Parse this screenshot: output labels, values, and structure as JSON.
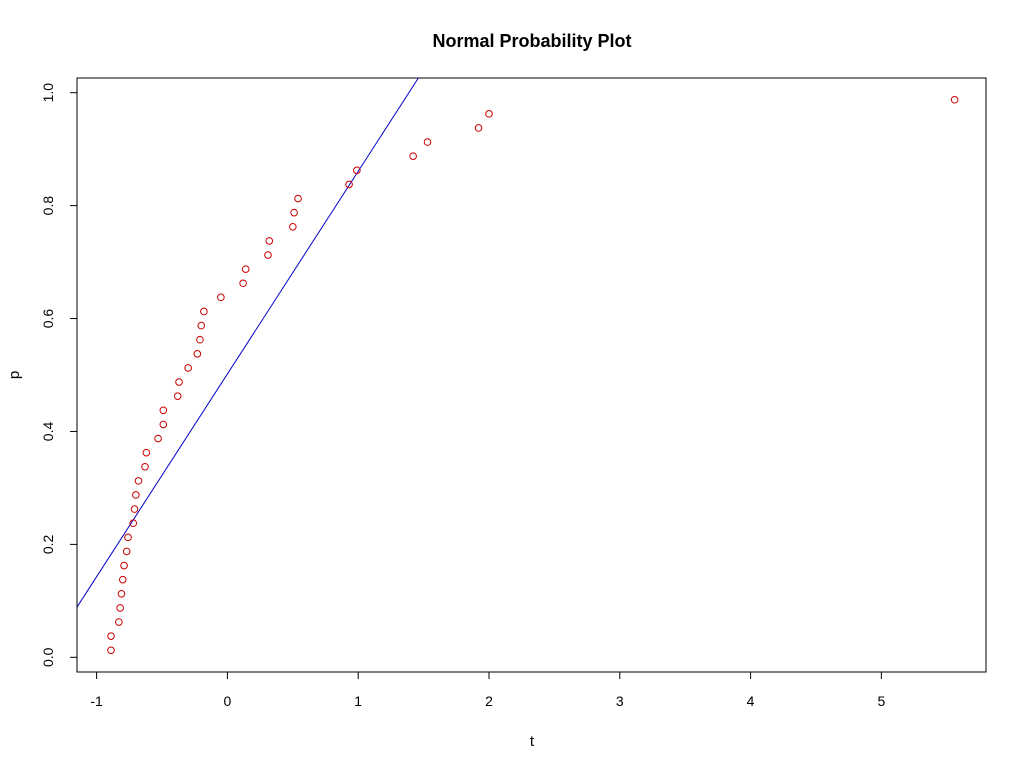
{
  "chart_data": {
    "type": "scatter",
    "title": "Normal Probability Plot",
    "xlabel": "t",
    "ylabel": "p",
    "xlim": [
      -1.15,
      5.8
    ],
    "ylim": [
      -0.026,
      1.026
    ],
    "x_ticks": [
      {
        "value": -1,
        "label": "-1"
      },
      {
        "value": 0,
        "label": "0"
      },
      {
        "value": 1,
        "label": "1"
      },
      {
        "value": 2,
        "label": "2"
      },
      {
        "value": 3,
        "label": "3"
      },
      {
        "value": 4,
        "label": "4"
      },
      {
        "value": 5,
        "label": "5"
      }
    ],
    "y_ticks": [
      {
        "value": 0.0,
        "label": "0.0"
      },
      {
        "value": 0.2,
        "label": "0.2"
      },
      {
        "value": 0.4,
        "label": "0.4"
      },
      {
        "value": 0.6,
        "label": "0.6"
      },
      {
        "value": 0.8,
        "label": "0.8"
      },
      {
        "value": 1.0,
        "label": "1.0"
      }
    ],
    "grid": false,
    "legend": "none",
    "series": [
      {
        "marker": "open-circle",
        "color": "#cc0000",
        "points": [
          {
            "x": -0.89,
            "y": 0.0125
          },
          {
            "x": -0.89,
            "y": 0.0375
          },
          {
            "x": -0.83,
            "y": 0.0625
          },
          {
            "x": -0.82,
            "y": 0.0875
          },
          {
            "x": -0.81,
            "y": 0.1125
          },
          {
            "x": -0.8,
            "y": 0.1375
          },
          {
            "x": -0.79,
            "y": 0.1625
          },
          {
            "x": -0.77,
            "y": 0.1875
          },
          {
            "x": -0.76,
            "y": 0.2125
          },
          {
            "x": -0.72,
            "y": 0.2375
          },
          {
            "x": -0.71,
            "y": 0.2625
          },
          {
            "x": -0.7,
            "y": 0.2875
          },
          {
            "x": -0.68,
            "y": 0.3125
          },
          {
            "x": -0.63,
            "y": 0.3375
          },
          {
            "x": -0.62,
            "y": 0.3625
          },
          {
            "x": -0.53,
            "y": 0.3875
          },
          {
            "x": -0.49,
            "y": 0.4125
          },
          {
            "x": -0.49,
            "y": 0.4375
          },
          {
            "x": -0.38,
            "y": 0.4625
          },
          {
            "x": -0.37,
            "y": 0.4875
          },
          {
            "x": -0.3,
            "y": 0.5125
          },
          {
            "x": -0.23,
            "y": 0.5375
          },
          {
            "x": -0.21,
            "y": 0.5625
          },
          {
            "x": -0.2,
            "y": 0.5875
          },
          {
            "x": -0.18,
            "y": 0.6125
          },
          {
            "x": -0.05,
            "y": 0.6375
          },
          {
            "x": 0.12,
            "y": 0.6625
          },
          {
            "x": 0.14,
            "y": 0.6875
          },
          {
            "x": 0.31,
            "y": 0.7125
          },
          {
            "x": 0.32,
            "y": 0.7375
          },
          {
            "x": 0.5,
            "y": 0.7625
          },
          {
            "x": 0.51,
            "y": 0.7875
          },
          {
            "x": 0.54,
            "y": 0.8125
          },
          {
            "x": 0.93,
            "y": 0.8375
          },
          {
            "x": 0.99,
            "y": 0.8625
          },
          {
            "x": 1.42,
            "y": 0.8875
          },
          {
            "x": 1.53,
            "y": 0.9125
          },
          {
            "x": 1.92,
            "y": 0.9375
          },
          {
            "x": 2.0,
            "y": 0.9625
          },
          {
            "x": 5.56,
            "y": 0.9875
          }
        ]
      }
    ],
    "reference_line": {
      "color": "#0000cc",
      "from": {
        "x": -1.15,
        "y": 0.089
      },
      "to": {
        "x": 1.46,
        "y": 1.026
      }
    }
  }
}
